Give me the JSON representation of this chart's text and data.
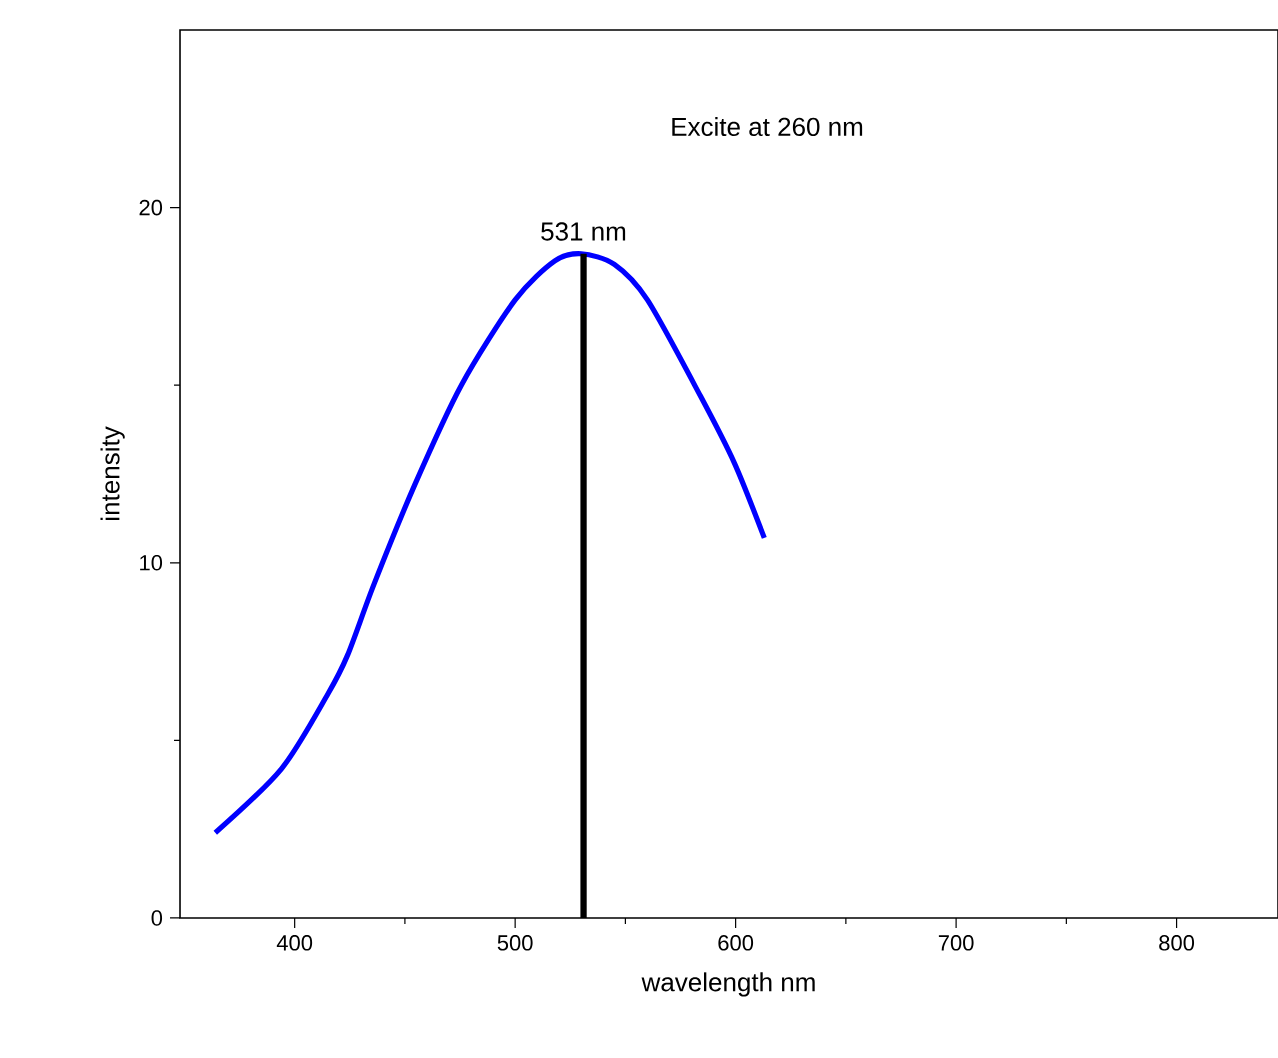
{
  "chart_data": {
    "type": "line",
    "xlabel": "wavelength nm",
    "ylabel": "intensity",
    "xlim": [
      348,
      846
    ],
    "ylim": [
      0,
      25
    ],
    "xticks": [
      400,
      500,
      600,
      700,
      800
    ],
    "yticks": [
      0,
      10,
      20
    ],
    "grid": false,
    "annotations": [
      "Excite at 260 nm",
      {
        "text": "531 nm",
        "x": 531,
        "y": 18.7
      }
    ],
    "series": [
      {
        "color": "#0000ff",
        "x": [
          364,
          394,
          415,
          424,
          436,
          454.5,
          475.6,
          500,
          518,
          530,
          545,
          560,
          584,
          599.5,
          613
        ],
        "values": [
          2.4,
          4.2,
          6.3,
          7.4,
          9.4,
          12.2,
          15.0,
          17.4,
          18.5,
          18.7,
          18.4,
          17.4,
          14.7,
          12.8,
          10.7
        ]
      },
      {
        "color": "#000000",
        "x": [
          531,
          531
        ],
        "values": [
          0,
          18.7
        ]
      }
    ]
  }
}
